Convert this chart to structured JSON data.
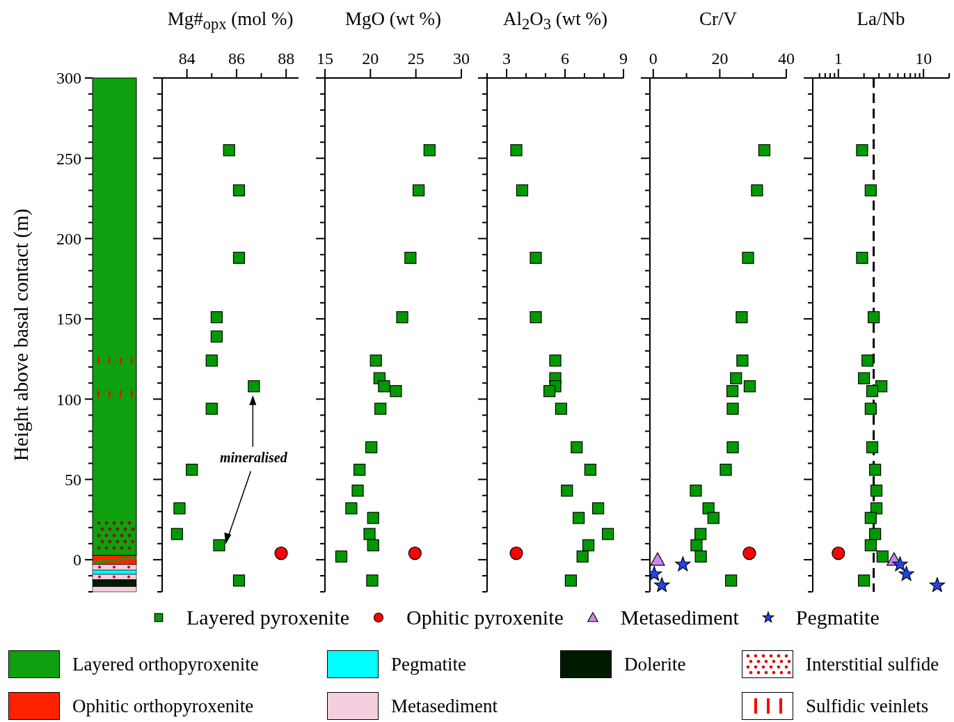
{
  "chart_data": [
    {
      "type": "scatter",
      "xlabel": "Mg#$_{opx}$ (mol %)",
      "ylabel": "Height above basal contact (m)",
      "xlim": [
        83,
        88.5
      ],
      "xticks": [
        84,
        {
          "value": 85,
          "label": null
        },
        86,
        {
          "value": 87,
          "label": null
        },
        88
      ],
      "ylim": [
        -20,
        300
      ],
      "yticks": [
        {
          "value": -20,
          "label": null
        },
        {
          "value": -10,
          "label": null
        },
        0,
        {
          "value": 10,
          "label": null
        },
        {
          "value": 20,
          "label": null
        },
        {
          "value": 30,
          "label": null
        },
        {
          "value": 40,
          "label": null
        },
        50,
        {
          "value": 60,
          "label": null
        },
        {
          "value": 70,
          "label": null
        },
        {
          "value": 80,
          "label": null
        },
        {
          "value": 90,
          "label": null
        },
        100,
        {
          "value": 110,
          "label": null
        },
        {
          "value": 120,
          "label": null
        },
        {
          "value": 130,
          "label": null
        },
        {
          "value": 140,
          "label": null
        },
        150,
        {
          "value": 160,
          "label": null
        },
        {
          "value": 170,
          "label": null
        },
        {
          "value": 180,
          "label": null
        },
        {
          "value": 190,
          "label": null
        },
        200,
        {
          "value": 210,
          "label": null
        },
        {
          "value": 220,
          "label": null
        },
        {
          "value": 230,
          "label": null
        },
        {
          "value": 240,
          "label": null
        },
        250,
        {
          "value": 260,
          "label": null
        },
        {
          "value": 270,
          "label": null
        },
        {
          "value": 280,
          "label": null
        },
        {
          "value": 290,
          "label": null
        },
        300
      ],
      "grid": false,
      "annotations": [
        "mineralised"
      ],
      "series": [
        {
          "color": "#009a00",
          "marker": "square",
          "x": [
            85.7,
            86.1,
            86.1,
            85.2,
            85.2,
            85.0,
            86.7,
            85.0,
            84.2,
            83.7,
            83.6,
            85.3,
            86.1
          ],
          "values": [
            255,
            230,
            188,
            151,
            139,
            124,
            108,
            94,
            56,
            32,
            16,
            9,
            -13
          ]
        },
        {
          "color": "#ff0000",
          "marker": "circle",
          "x": [
            87.8
          ],
          "values": [
            4
          ]
        }
      ]
    },
    {
      "type": "scatter",
      "xlabel": "MgO (wt %)",
      "tick_labels": "x",
      "xlim": [
        15,
        30
      ],
      "xticks": [
        15,
        20,
        25,
        30
      ],
      "ylim": [
        -20,
        300
      ],
      "yticks": [
        {
          "value": -20,
          "label": null
        },
        {
          "value": -10,
          "label": null
        },
        0,
        {
          "value": 10,
          "label": null
        },
        {
          "value": 20,
          "label": null
        },
        {
          "value": 30,
          "label": null
        },
        {
          "value": 40,
          "label": null
        },
        50,
        {
          "value": 60,
          "label": null
        },
        {
          "value": 70,
          "label": null
        },
        {
          "value": 80,
          "label": null
        },
        {
          "value": 90,
          "label": null
        },
        100,
        {
          "value": 110,
          "label": null
        },
        {
          "value": 120,
          "label": null
        },
        {
          "value": 130,
          "label": null
        },
        {
          "value": 140,
          "label": null
        },
        150,
        {
          "value": 160,
          "label": null
        },
        {
          "value": 170,
          "label": null
        },
        {
          "value": 180,
          "label": null
        },
        {
          "value": 190,
          "label": null
        },
        200,
        {
          "value": 210,
          "label": null
        },
        {
          "value": 220,
          "label": null
        },
        {
          "value": 230,
          "label": null
        },
        {
          "value": 240,
          "label": null
        },
        250,
        {
          "value": 260,
          "label": null
        },
        {
          "value": 270,
          "label": null
        },
        {
          "value": 280,
          "label": null
        },
        {
          "value": 290,
          "label": null
        },
        300
      ],
      "series": [
        {
          "color": "#009a00",
          "marker": "square",
          "x": [
            26.5,
            25.3,
            24.4,
            23.5,
            20.6,
            21.0,
            21.5,
            22.8,
            21.1,
            20.1,
            18.8,
            18.6,
            17.9,
            20.3,
            19.9,
            20.3,
            16.8,
            20.2
          ],
          "values": [
            255,
            230,
            188,
            151,
            124,
            113,
            108,
            105,
            94,
            70,
            56,
            43,
            32,
            26,
            16,
            9,
            2,
            -13
          ]
        },
        {
          "color": "#ff0000",
          "marker": "circle",
          "x": [
            24.9
          ],
          "values": [
            4
          ]
        }
      ]
    },
    {
      "type": "scatter",
      "xlabel": "Al$_{2}$O$_{3}$ (wt %)",
      "tick_labels": "x",
      "xlim": [
        2,
        9
      ],
      "xticks": [
        {
          "value": 2,
          "label": null
        },
        3,
        {
          "value": 4,
          "label": null
        },
        {
          "value": 5,
          "label": null
        },
        6,
        {
          "value": 7,
          "label": null
        },
        {
          "value": 8,
          "label": null
        },
        9
      ],
      "ylim": [
        -20,
        300
      ],
      "yticks": [
        {
          "value": -20,
          "label": null
        },
        {
          "value": -10,
          "label": null
        },
        0,
        {
          "value": 10,
          "label": null
        },
        {
          "value": 20,
          "label": null
        },
        {
          "value": 30,
          "label": null
        },
        {
          "value": 40,
          "label": null
        },
        50,
        {
          "value": 60,
          "label": null
        },
        {
          "value": 70,
          "label": null
        },
        {
          "value": 80,
          "label": null
        },
        {
          "value": 90,
          "label": null
        },
        100,
        {
          "value": 110,
          "label": null
        },
        {
          "value": 120,
          "label": null
        },
        {
          "value": 130,
          "label": null
        },
        {
          "value": 140,
          "label": null
        },
        150,
        {
          "value": 160,
          "label": null
        },
        {
          "value": 170,
          "label": null
        },
        {
          "value": 180,
          "label": null
        },
        {
          "value": 190,
          "label": null
        },
        200,
        {
          "value": 210,
          "label": null
        },
        {
          "value": 220,
          "label": null
        },
        {
          "value": 230,
          "label": null
        },
        {
          "value": 240,
          "label": null
        },
        250,
        {
          "value": 260,
          "label": null
        },
        {
          "value": 270,
          "label": null
        },
        {
          "value": 280,
          "label": null
        },
        {
          "value": 290,
          "label": null
        },
        300
      ],
      "series": [
        {
          "color": "#009a00",
          "marker": "square",
          "x": [
            3.5,
            3.8,
            4.5,
            4.5,
            5.5,
            5.5,
            5.5,
            5.2,
            5.8,
            6.6,
            7.3,
            6.1,
            7.7,
            6.7,
            8.2,
            7.2,
            6.9,
            6.3
          ],
          "values": [
            255,
            230,
            188,
            151,
            124,
            113,
            108,
            105,
            94,
            70,
            56,
            43,
            32,
            26,
            16,
            9,
            2,
            -13
          ]
        },
        {
          "color": "#ff0000",
          "marker": "circle",
          "x": [
            3.5
          ],
          "values": [
            4
          ]
        }
      ]
    },
    {
      "type": "scatter",
      "xlabel": "Cr/V",
      "tick_labels": "x",
      "legend": "bottom",
      "grid": false,
      "annotations": [
        "Layered orthopyroxenite",
        "Ophitic orthopyroxenite",
        "Pegmatite",
        "Metasediment",
        "Dolerite",
        "Interstitial sulfide",
        "Sulfidic veinlets"
      ],
      "xlim": [
        -1,
        40
      ],
      "xticks": [
        0,
        {
          "value": 10,
          "label": null
        },
        20,
        {
          "value": 30,
          "label": null
        },
        40
      ],
      "ylim": [
        -20,
        300
      ],
      "yticks": [
        {
          "value": -20,
          "label": null
        },
        {
          "value": -10,
          "label": null
        },
        0,
        {
          "value": 10,
          "label": null
        },
        {
          "value": 20,
          "label": null
        },
        {
          "value": 30,
          "label": null
        },
        {
          "value": 40,
          "label": null
        },
        50,
        {
          "value": 60,
          "label": null
        },
        {
          "value": 70,
          "label": null
        },
        {
          "value": 80,
          "label": null
        },
        {
          "value": 90,
          "label": null
        },
        100,
        {
          "value": 110,
          "label": null
        },
        {
          "value": 120,
          "label": null
        },
        {
          "value": 130,
          "label": null
        },
        {
          "value": 140,
          "label": null
        },
        150,
        {
          "value": 160,
          "label": null
        },
        {
          "value": 170,
          "label": null
        },
        {
          "value": 180,
          "label": null
        },
        {
          "value": 190,
          "label": null
        },
        200,
        {
          "value": 210,
          "label": null
        },
        {
          "value": 220,
          "label": null
        },
        {
          "value": 230,
          "label": null
        },
        {
          "value": 240,
          "label": null
        },
        250,
        {
          "value": 260,
          "label": null
        },
        {
          "value": 270,
          "label": null
        },
        {
          "value": 280,
          "label": null
        },
        {
          "value": 290,
          "label": null
        },
        300
      ],
      "series": [
        {
          "name": "Layered pyroxenite",
          "color": "#009a00",
          "marker": "square",
          "x": [
            33.4,
            31.2,
            28.5,
            26.6,
            26.8,
            24.9,
            29.0,
            23.8,
            23.9,
            23.9,
            21.8,
            12.8,
            16.6,
            18.1,
            14.2,
            13.0,
            14.3,
            23.4
          ],
          "values": [
            255,
            230,
            188,
            151,
            124,
            113,
            108,
            105,
            94,
            70,
            56,
            43,
            32,
            26,
            16,
            9,
            2,
            -13
          ]
        },
        {
          "name": "Ophitic pyroxenite",
          "color": "#ff0000",
          "marker": "circle",
          "x": [
            28.9
          ],
          "values": [
            4
          ]
        },
        {
          "name": "Metasediment",
          "color": "#cc88ee",
          "marker": "triangle",
          "x": [
            1.3
          ],
          "values": [
            0
          ]
        },
        {
          "name": "Pegmatite",
          "color": "#2244ee",
          "marker": "star",
          "x": [
            8.9,
            0.3,
            2.6
          ],
          "values": [
            -3,
            -9,
            -16
          ]
        }
      ]
    },
    {
      "type": "scatter",
      "xlabel": "La/Nb",
      "tick_labels": "x",
      "log": "x",
      "xlim": [
        0.5,
        20
      ],
      "xticks": [
        {
          "value": 0.6,
          "label": null
        },
        {
          "value": 0.7,
          "label": null
        },
        {
          "value": 0.8,
          "label": null
        },
        {
          "value": 0.9,
          "label": null
        },
        1,
        {
          "value": 2,
          "label": null
        },
        {
          "value": 3,
          "label": null
        },
        {
          "value": 4,
          "label": null
        },
        {
          "value": 5,
          "label": null
        },
        {
          "value": 6,
          "label": null
        },
        {
          "value": 7,
          "label": null
        },
        {
          "value": 8,
          "label": null
        },
        {
          "value": 9,
          "label": null
        },
        10,
        {
          "value": 20,
          "label": null
        }
      ],
      "ylim": [
        -20,
        300
      ],
      "yticks": [
        {
          "value": -20,
          "label": null
        },
        {
          "value": -10,
          "label": null
        },
        0,
        {
          "value": 10,
          "label": null
        },
        {
          "value": 20,
          "label": null
        },
        {
          "value": 30,
          "label": null
        },
        {
          "value": 40,
          "label": null
        },
        50,
        {
          "value": 60,
          "label": null
        },
        {
          "value": 70,
          "label": null
        },
        {
          "value": 80,
          "label": null
        },
        {
          "value": 90,
          "label": null
        },
        100,
        {
          "value": 110,
          "label": null
        },
        {
          "value": 120,
          "label": null
        },
        {
          "value": 130,
          "label": null
        },
        {
          "value": 140,
          "label": null
        },
        150,
        {
          "value": 160,
          "label": null
        },
        {
          "value": 170,
          "label": null
        },
        {
          "value": 180,
          "label": null
        },
        {
          "value": 190,
          "label": null
        },
        200,
        {
          "value": 210,
          "label": null
        },
        {
          "value": 220,
          "label": null
        },
        {
          "value": 230,
          "label": null
        },
        {
          "value": 240,
          "label": null
        },
        250,
        {
          "value": 260,
          "label": null
        },
        {
          "value": 270,
          "label": null
        },
        {
          "value": 280,
          "label": null
        },
        {
          "value": 290,
          "label": null
        },
        300
      ],
      "ref_lines": [
        {
          "axis": "x",
          "value": 2.6,
          "color": "#000000",
          "line_style": "dashed"
        }
      ],
      "series": [
        {
          "color": "#009a00",
          "marker": "square",
          "x": [
            1.9,
            2.4,
            1.9,
            2.6,
            2.2,
            2.0,
            3.2,
            2.5,
            2.4,
            2.5,
            2.7,
            2.8,
            2.8,
            2.4,
            2.7,
            2.4,
            3.3,
            2.0
          ],
          "values": [
            255,
            230,
            188,
            151,
            124,
            113,
            108,
            105,
            94,
            70,
            56,
            43,
            32,
            26,
            16,
            9,
            2,
            -13
          ]
        },
        {
          "color": "#ff0000",
          "marker": "circle",
          "x": [
            1.0
          ],
          "values": [
            4
          ]
        },
        {
          "color": "#cc88ee",
          "marker": "triangle",
          "x": [
            4.5
          ],
          "values": [
            0
          ]
        },
        {
          "color": "#2244ee",
          "marker": "star",
          "x": [
            5.3,
            6.3,
            14.5
          ],
          "values": [
            -3,
            -9,
            -16
          ]
        }
      ]
    }
  ]
}
